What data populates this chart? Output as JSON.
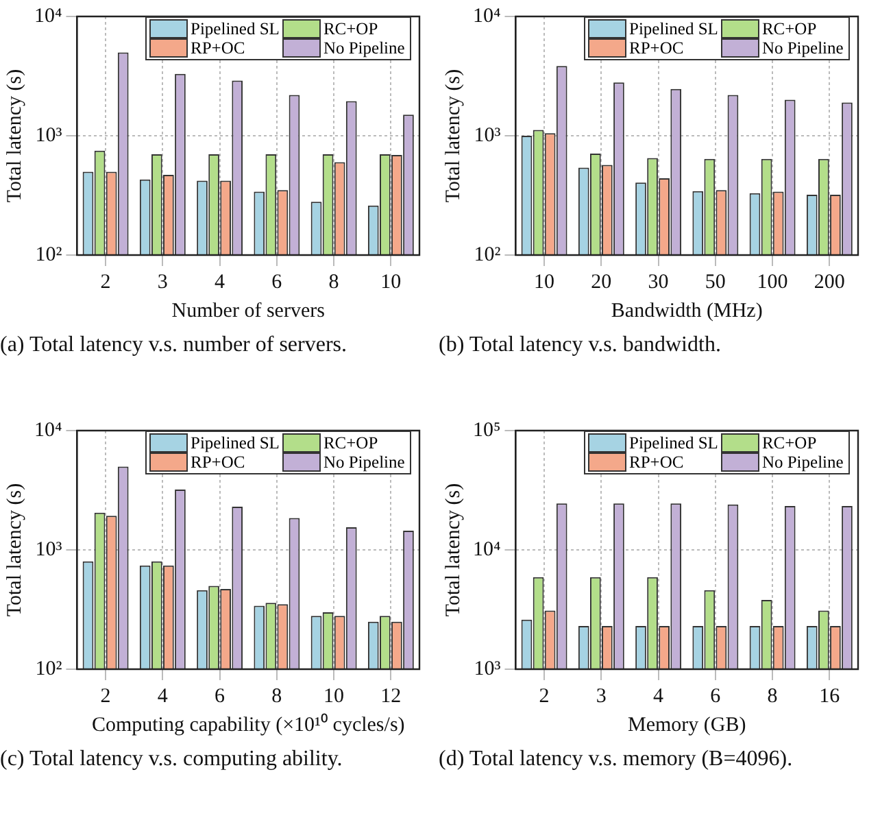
{
  "chart_data": [
    {
      "type": "bar",
      "annotations": [
        "(a) Total latency v.s. number of servers."
      ],
      "xlabel": "Number of servers",
      "ylabel": "Total latency (s)",
      "categories": [
        "2",
        "3",
        "4",
        "6",
        "8",
        "10"
      ],
      "log": "y",
      "grid": true,
      "legend": "top",
      "ylim": [
        100,
        10000
      ],
      "yticks": [
        {
          "value": 100,
          "label": "10²"
        },
        {
          "value": 1000,
          "label": "10³"
        },
        {
          "value": 10000,
          "label": "10⁴"
        }
      ],
      "series": [
        {
          "name": "Pipelined SL",
          "color": "#a6d3e3",
          "values": [
            500,
            430,
            420,
            340,
            280,
            260
          ]
        },
        {
          "name": "RC+OP",
          "color": "#b3de8a",
          "values": [
            750,
            700,
            700,
            700,
            700,
            700
          ]
        },
        {
          "name": "RP+OC",
          "color": "#f4a88a",
          "values": [
            500,
            470,
            420,
            350,
            600,
            690
          ]
        },
        {
          "name": "No Pipeline",
          "color": "#c2b0d6",
          "values": [
            5000,
            3300,
            2900,
            2200,
            1950,
            1500
          ]
        }
      ]
    },
    {
      "type": "bar",
      "annotations": [
        "(b) Total latency v.s. bandwidth."
      ],
      "xlabel": "Bandwidth (MHz)",
      "ylabel": "Total latency (s)",
      "categories": [
        "10",
        "20",
        "30",
        "50",
        "100",
        "200"
      ],
      "log": "y",
      "grid": true,
      "legend": "top",
      "ylim": [
        100,
        10000
      ],
      "yticks": [
        {
          "value": 100,
          "label": "10²"
        },
        {
          "value": 1000,
          "label": "10³"
        },
        {
          "value": 10000,
          "label": "10⁴"
        }
      ],
      "series": [
        {
          "name": "Pipelined SL",
          "color": "#a6d3e3",
          "values": [
            1000,
            540,
            405,
            343,
            330,
            320
          ]
        },
        {
          "name": "RC+OP",
          "color": "#b3de8a",
          "values": [
            1120,
            710,
            650,
            640,
            640,
            640
          ]
        },
        {
          "name": "RP+OC",
          "color": "#f4a88a",
          "values": [
            1050,
            570,
            440,
            350,
            340,
            320
          ]
        },
        {
          "name": "No Pipeline",
          "color": "#c2b0d6",
          "values": [
            3850,
            2800,
            2470,
            2200,
            2000,
            1900
          ]
        }
      ]
    },
    {
      "type": "bar",
      "annotations": [
        "(c) Total latency v.s. computing ability."
      ],
      "xlabel": "Computing capability (×10¹⁰ cycles/s)",
      "ylabel": "Total latency (s)",
      "categories": [
        "2",
        "4",
        "6",
        "8",
        "10",
        "12"
      ],
      "log": "y",
      "grid": true,
      "legend": "top",
      "ylim": [
        100,
        10000
      ],
      "yticks": [
        {
          "value": 100,
          "label": "10²"
        },
        {
          "value": 1000,
          "label": "10³"
        },
        {
          "value": 10000,
          "label": "10⁴"
        }
      ],
      "series": [
        {
          "name": "Pipelined SL",
          "color": "#a6d3e3",
          "values": [
            800,
            740,
            460,
            340,
            280,
            250
          ]
        },
        {
          "name": "RC+OP",
          "color": "#b3de8a",
          "values": [
            2050,
            800,
            500,
            360,
            300,
            280
          ]
        },
        {
          "name": "RP+OC",
          "color": "#f4a88a",
          "values": [
            1930,
            740,
            470,
            350,
            280,
            250
          ]
        },
        {
          "name": "No Pipeline",
          "color": "#c2b0d6",
          "values": [
            5000,
            3200,
            2300,
            1850,
            1550,
            1450
          ]
        }
      ]
    },
    {
      "type": "bar",
      "annotations": [
        "(d) Total latency v.s. memory (B=4096)."
      ],
      "xlabel": "Memory (GB)",
      "ylabel": "Total latency (s)",
      "categories": [
        "2",
        "3",
        "4",
        "6",
        "8",
        "16"
      ],
      "log": "y",
      "grid": true,
      "legend": "top",
      "ylim": [
        1000,
        100000
      ],
      "yticks": [
        {
          "value": 1000,
          "label": "10³"
        },
        {
          "value": 10000,
          "label": "10⁴"
        },
        {
          "value": 100000,
          "label": "10⁵"
        }
      ],
      "series": [
        {
          "name": "Pipelined SL",
          "color": "#a6d3e3",
          "values": [
            2600,
            2300,
            2300,
            2300,
            2300,
            2300
          ]
        },
        {
          "name": "RC+OP",
          "color": "#b3de8a",
          "values": [
            5900,
            5900,
            5900,
            4600,
            3800,
            3100
          ]
        },
        {
          "name": "RP+OC",
          "color": "#f4a88a",
          "values": [
            3100,
            2300,
            2300,
            2300,
            2300,
            2300
          ]
        },
        {
          "name": "No Pipeline",
          "color": "#c2b0d6",
          "values": [
            24500,
            24500,
            24500,
            24000,
            23300,
            23300
          ]
        }
      ]
    }
  ]
}
